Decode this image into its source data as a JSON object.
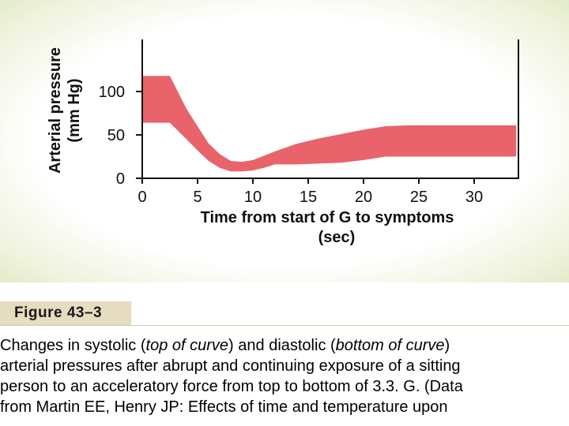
{
  "chart_data": {
    "type": "area",
    "title": "",
    "xlabel": [
      "Time from start of G to symptoms",
      "(sec)"
    ],
    "ylabel": [
      "Arterial pressure",
      "(mm Hg)"
    ],
    "xlim": [
      0,
      34
    ],
    "ylim": [
      0,
      160
    ],
    "xticks": [
      0,
      5,
      10,
      15,
      20,
      25,
      30
    ],
    "yticks": [
      0,
      50,
      100
    ],
    "grid": false,
    "band_color": "#e8646a",
    "series": [
      {
        "values_x": [
          0,
          2.5,
          4,
          5,
          6,
          7,
          8,
          9,
          10,
          11,
          12,
          14,
          16,
          18,
          20,
          22,
          24,
          26,
          28,
          30,
          32,
          33.8
        ],
        "upper": [
          118,
          118,
          80,
          60,
          40,
          28,
          20,
          19,
          21,
          26,
          31,
          40,
          46,
          51,
          56,
          60,
          61,
          61,
          61,
          61,
          61,
          61
        ],
        "lower": [
          64,
          64,
          45,
          32,
          20,
          12,
          8,
          8,
          9,
          12,
          16,
          16,
          17,
          18,
          21,
          25,
          25,
          25,
          25,
          25,
          25,
          25
        ]
      }
    ]
  },
  "caption": {
    "label": "Figure 43–3",
    "lines": [
      [
        {
          "text": "Changes in systolic (",
          "italic": false
        },
        {
          "text": "top of curve",
          "italic": true
        },
        {
          "text": ") and diastolic (",
          "italic": false
        },
        {
          "text": "bottom of curve",
          "italic": true
        },
        {
          "text": ")",
          "italic": false
        }
      ],
      [
        {
          "text": "arterial pressures after abrupt and continuing exposure of a sitting",
          "italic": false
        }
      ],
      [
        {
          "text": "person to an acceleratory force from top to bottom of 3.3. G. (Data",
          "italic": false
        }
      ],
      [
        {
          "text": "from Martin EE, Henry JP: Effects of time and temperature upon",
          "italic": false
        }
      ]
    ]
  }
}
